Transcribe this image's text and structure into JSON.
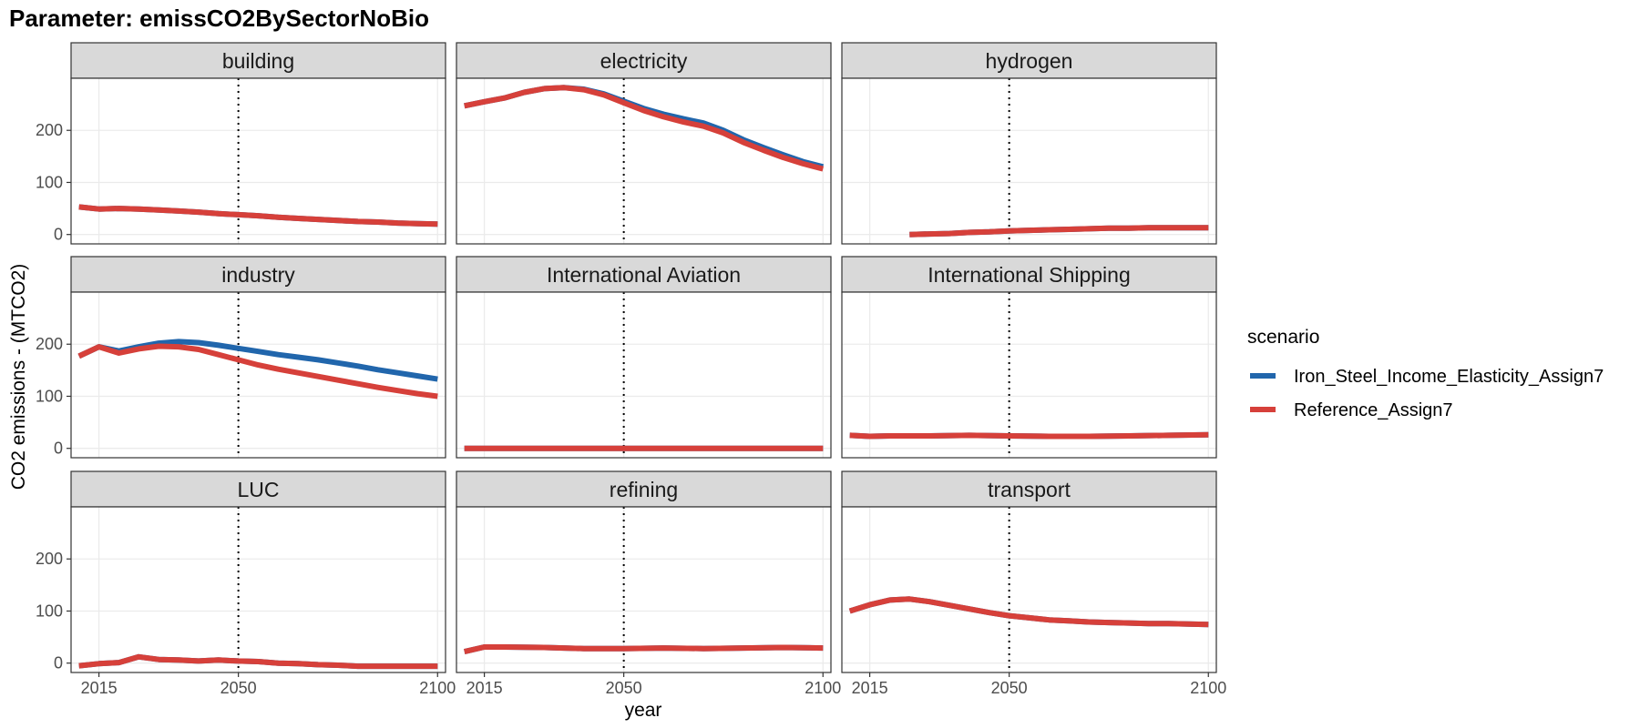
{
  "title": "Parameter: emissCO2BySectorNoBio",
  "chart_data": {
    "type": "line",
    "facet_layout": "3x3",
    "xlabel": "year",
    "ylabel": "CO2 emissions - (MTCO2)",
    "xlim": [
      2008,
      2102
    ],
    "ylim": [
      -18,
      300
    ],
    "xticks": [
      2015,
      2050,
      2100
    ],
    "yticks": [
      0,
      100,
      200
    ],
    "grid": true,
    "reference_line": {
      "x": 2050,
      "style": "dotted"
    },
    "legend": {
      "title": "scenario",
      "position": "right",
      "entries": [
        {
          "name": "Iron_Steel_Income_Elasticity_Assign7",
          "color": "#2166ac"
        },
        {
          "name": "Reference_Assign7",
          "color": "#d6403a"
        }
      ]
    },
    "panels": [
      {
        "name": "building",
        "series": [
          {
            "name": "Iron_Steel_Income_Elasticity_Assign7",
            "x": [
              2010,
              2015,
              2020,
              2025,
              2030,
              2035,
              2040,
              2045,
              2050,
              2055,
              2060,
              2065,
              2070,
              2075,
              2080,
              2085,
              2090,
              2095,
              2100
            ],
            "y": [
              53,
              49,
              50,
              49,
              47,
              45,
              43,
              40,
              38,
              36,
              33,
              31,
              29,
              27,
              25,
              24,
              22,
              21,
              20
            ]
          },
          {
            "name": "Reference_Assign7",
            "x": [
              2010,
              2015,
              2020,
              2025,
              2030,
              2035,
              2040,
              2045,
              2050,
              2055,
              2060,
              2065,
              2070,
              2075,
              2080,
              2085,
              2090,
              2095,
              2100
            ],
            "y": [
              53,
              49,
              50,
              49,
              47,
              45,
              43,
              40,
              38,
              36,
              33,
              31,
              29,
              27,
              25,
              24,
              22,
              21,
              20
            ]
          }
        ]
      },
      {
        "name": "electricity",
        "series": [
          {
            "name": "Iron_Steel_Income_Elasticity_Assign7",
            "x": [
              2010,
              2015,
              2020,
              2025,
              2030,
              2035,
              2040,
              2045,
              2050,
              2055,
              2060,
              2065,
              2070,
              2075,
              2080,
              2085,
              2090,
              2095,
              2100
            ],
            "y": [
              247,
              255,
              262,
              273,
              280,
              282,
              279,
              270,
              256,
              242,
              231,
              222,
              214,
              200,
              182,
              167,
              153,
              140,
              130
            ]
          },
          {
            "name": "Reference_Assign7",
            "x": [
              2010,
              2015,
              2020,
              2025,
              2030,
              2035,
              2040,
              2045,
              2050,
              2055,
              2060,
              2065,
              2070,
              2075,
              2080,
              2085,
              2090,
              2095,
              2100
            ],
            "y": [
              247,
              255,
              262,
              273,
              280,
              282,
              278,
              268,
              253,
              238,
              226,
              216,
              208,
              195,
              177,
              162,
              148,
              136,
              126
            ]
          }
        ]
      },
      {
        "name": "hydrogen",
        "series": [
          {
            "name": "Iron_Steel_Income_Elasticity_Assign7",
            "x": [
              2025,
              2030,
              2035,
              2040,
              2045,
              2050,
              2055,
              2060,
              2065,
              2070,
              2075,
              2080,
              2085,
              2090,
              2095,
              2100
            ],
            "y": [
              0,
              1,
              2,
              4,
              5,
              7,
              8,
              9,
              10,
              11,
              12,
              12,
              13,
              13,
              13,
              13
            ]
          },
          {
            "name": "Reference_Assign7",
            "x": [
              2025,
              2030,
              2035,
              2040,
              2045,
              2050,
              2055,
              2060,
              2065,
              2070,
              2075,
              2080,
              2085,
              2090,
              2095,
              2100
            ],
            "y": [
              0,
              1,
              2,
              4,
              5,
              7,
              8,
              9,
              10,
              11,
              12,
              12,
              13,
              13,
              13,
              13
            ]
          }
        ]
      },
      {
        "name": "industry",
        "series": [
          {
            "name": "Iron_Steel_Income_Elasticity_Assign7",
            "x": [
              2010,
              2015,
              2020,
              2025,
              2030,
              2035,
              2040,
              2045,
              2050,
              2055,
              2060,
              2065,
              2070,
              2075,
              2080,
              2085,
              2090,
              2095,
              2100
            ],
            "y": [
              177,
              195,
              187,
              195,
              202,
              205,
              203,
              198,
              192,
              186,
              180,
              175,
              170,
              164,
              158,
              151,
              145,
              139,
              133
            ]
          },
          {
            "name": "Reference_Assign7",
            "x": [
              2010,
              2015,
              2020,
              2025,
              2030,
              2035,
              2040,
              2045,
              2050,
              2055,
              2060,
              2065,
              2070,
              2075,
              2080,
              2085,
              2090,
              2095,
              2100
            ],
            "y": [
              177,
              195,
              183,
              191,
              196,
              195,
              190,
              180,
              170,
              160,
              152,
              145,
              138,
              131,
              124,
              117,
              111,
              105,
              100
            ]
          }
        ]
      },
      {
        "name": "International Aviation",
        "series": [
          {
            "name": "Iron_Steel_Income_Elasticity_Assign7",
            "x": [
              2010,
              2015,
              2020,
              2030,
              2040,
              2050,
              2060,
              2070,
              2080,
              2090,
              2100
            ],
            "y": [
              0,
              0,
              0,
              0,
              0,
              0,
              0,
              0,
              0,
              0,
              0
            ]
          },
          {
            "name": "Reference_Assign7",
            "x": [
              2010,
              2015,
              2020,
              2030,
              2040,
              2050,
              2060,
              2070,
              2080,
              2090,
              2100
            ],
            "y": [
              0,
              0,
              0,
              0,
              0,
              0,
              0,
              0,
              0,
              0,
              0
            ]
          }
        ]
      },
      {
        "name": "International Shipping",
        "series": [
          {
            "name": "Iron_Steel_Income_Elasticity_Assign7",
            "x": [
              2010,
              2015,
              2020,
              2030,
              2040,
              2050,
              2060,
              2070,
              2080,
              2090,
              2100
            ],
            "y": [
              25,
              23,
              24,
              24,
              25,
              24,
              23,
              23,
              24,
              25,
              26
            ]
          },
          {
            "name": "Reference_Assign7",
            "x": [
              2010,
              2015,
              2020,
              2030,
              2040,
              2050,
              2060,
              2070,
              2080,
              2090,
              2100
            ],
            "y": [
              25,
              23,
              24,
              24,
              25,
              24,
              23,
              23,
              24,
              25,
              26
            ]
          }
        ]
      },
      {
        "name": "LUC",
        "series": [
          {
            "name": "Iron_Steel_Income_Elasticity_Assign7",
            "x": [
              2010,
              2015,
              2020,
              2025,
              2030,
              2035,
              2040,
              2045,
              2050,
              2055,
              2060,
              2065,
              2070,
              2075,
              2080,
              2085,
              2090,
              2095,
              2100
            ],
            "y": [
              -5,
              -1,
              1,
              12,
              7,
              6,
              4,
              6,
              4,
              3,
              0,
              -1,
              -3,
              -4,
              -6,
              -6,
              -6,
              -6,
              -6
            ]
          },
          {
            "name": "Reference_Assign7",
            "x": [
              2010,
              2015,
              2020,
              2025,
              2030,
              2035,
              2040,
              2045,
              2050,
              2055,
              2060,
              2065,
              2070,
              2075,
              2080,
              2085,
              2090,
              2095,
              2100
            ],
            "y": [
              -5,
              -1,
              1,
              12,
              7,
              6,
              4,
              6,
              4,
              3,
              0,
              -1,
              -3,
              -4,
              -6,
              -6,
              -6,
              -6,
              -6
            ]
          }
        ]
      },
      {
        "name": "refining",
        "series": [
          {
            "name": "Iron_Steel_Income_Elasticity_Assign7",
            "x": [
              2010,
              2015,
              2020,
              2030,
              2040,
              2050,
              2060,
              2070,
              2080,
              2090,
              2100
            ],
            "y": [
              22,
              31,
              31,
              30,
              28,
              28,
              29,
              28,
              29,
              30,
              29
            ]
          },
          {
            "name": "Reference_Assign7",
            "x": [
              2010,
              2015,
              2020,
              2030,
              2040,
              2050,
              2060,
              2070,
              2080,
              2090,
              2100
            ],
            "y": [
              22,
              31,
              31,
              30,
              28,
              28,
              29,
              28,
              29,
              30,
              29
            ]
          }
        ]
      },
      {
        "name": "transport",
        "series": [
          {
            "name": "Iron_Steel_Income_Elasticity_Assign7",
            "x": [
              2010,
              2015,
              2020,
              2025,
              2030,
              2035,
              2040,
              2045,
              2050,
              2055,
              2060,
              2065,
              2070,
              2075,
              2080,
              2085,
              2090,
              2095,
              2100
            ],
            "y": [
              100,
              112,
              121,
              123,
              118,
              111,
              104,
              97,
              91,
              87,
              83,
              81,
              79,
              78,
              77,
              76,
              76,
              75,
              74
            ]
          },
          {
            "name": "Reference_Assign7",
            "x": [
              2010,
              2015,
              2020,
              2025,
              2030,
              2035,
              2040,
              2045,
              2050,
              2055,
              2060,
              2065,
              2070,
              2075,
              2080,
              2085,
              2090,
              2095,
              2100
            ],
            "y": [
              100,
              112,
              121,
              123,
              118,
              111,
              104,
              97,
              91,
              87,
              83,
              81,
              79,
              78,
              77,
              76,
              76,
              75,
              74
            ]
          }
        ]
      }
    ]
  }
}
